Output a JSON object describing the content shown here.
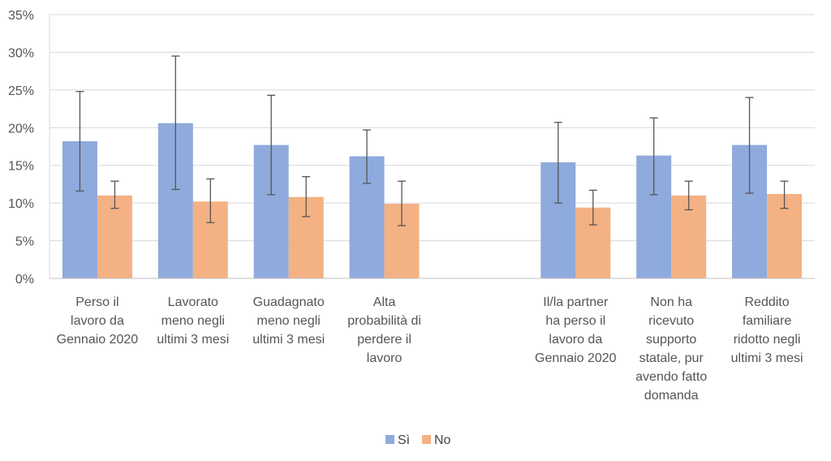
{
  "chart_data": {
    "type": "bar",
    "title": "",
    "xlabel": "",
    "ylabel": "",
    "ylim": [
      0,
      35
    ],
    "yticks": [
      "0%",
      "5%",
      "10%",
      "15%",
      "20%",
      "25%",
      "30%",
      "35%"
    ],
    "ytick_values": [
      0,
      5,
      10,
      15,
      20,
      25,
      30,
      35
    ],
    "grid": true,
    "legend_position": "bottom-center",
    "categories": [
      [
        "Perso il",
        "lavoro da",
        "Gennaio 2020"
      ],
      [
        "Lavorato",
        "meno negli",
        "ultimi 3 mesi"
      ],
      [
        "Guadagnato",
        "meno negli",
        "ultimi 3 mesi"
      ],
      [
        "Alta",
        "probabilità di",
        "perdere il",
        "lavoro"
      ],
      [],
      [
        "Il/la partner",
        "ha perso il",
        "lavoro da",
        "Gennaio 2020"
      ],
      [
        "Non ha",
        "ricevuto",
        "supporto",
        "statale, pur",
        "avendo fatto",
        "domanda"
      ],
      [
        "Reddito",
        "familiare",
        "ridotto negli",
        "ultimi 3 mesi"
      ]
    ],
    "series": [
      {
        "name": "Sì",
        "color": "#8faadc",
        "values": [
          18.2,
          20.6,
          17.7,
          16.2,
          null,
          15.4,
          16.3,
          17.7
        ],
        "err_low": [
          11.6,
          11.8,
          11.1,
          12.6,
          null,
          10.0,
          11.1,
          11.3
        ],
        "err_high": [
          24.8,
          29.5,
          24.3,
          19.7,
          null,
          20.7,
          21.3,
          24.0
        ]
      },
      {
        "name": "No",
        "color": "#f4b183",
        "values": [
          11.0,
          10.2,
          10.8,
          9.9,
          null,
          9.4,
          11.0,
          11.2
        ],
        "err_low": [
          9.3,
          7.4,
          8.2,
          7.0,
          null,
          7.1,
          9.1,
          9.3
        ],
        "err_high": [
          12.9,
          13.2,
          13.5,
          12.9,
          null,
          11.7,
          12.9,
          12.9
        ]
      }
    ]
  }
}
